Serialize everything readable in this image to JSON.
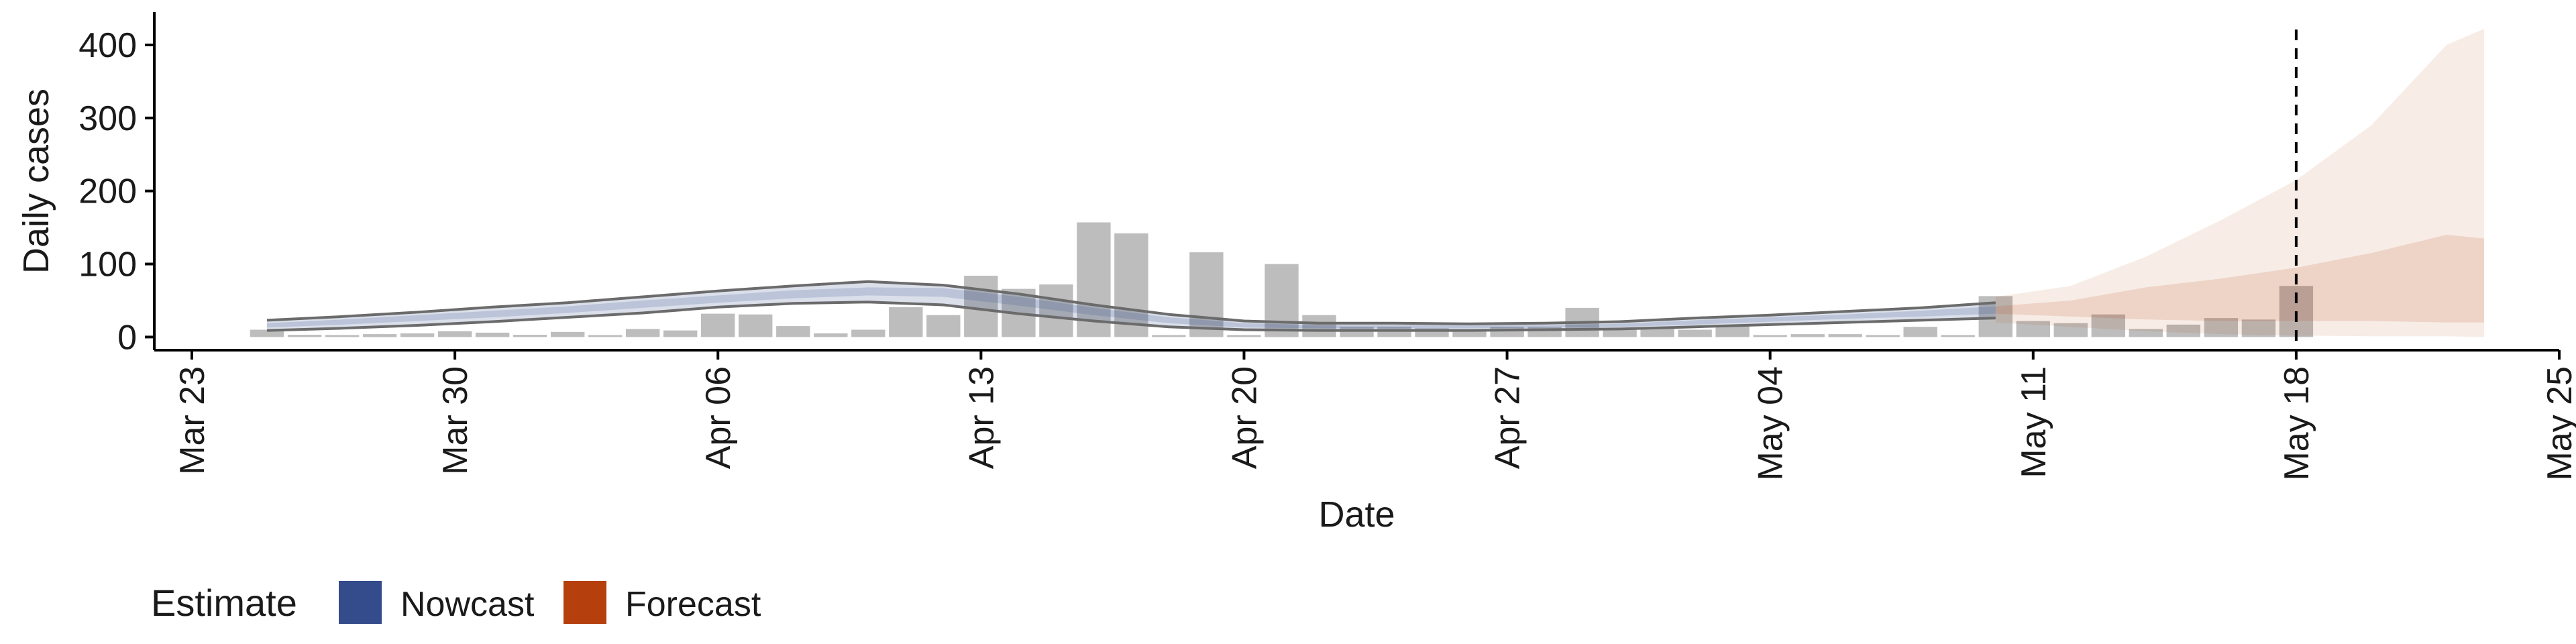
{
  "chart_data": {
    "type": "bar",
    "title": "",
    "xlabel": "Date",
    "ylabel": "Daily cases",
    "x_ticks": [
      "Mar 23",
      "Mar 30",
      "Apr 06",
      "Apr 13",
      "Apr 20",
      "Apr 27",
      "May 04",
      "May 11",
      "May 18",
      "May 25"
    ],
    "y_ticks": [
      "0",
      "100",
      "200",
      "300",
      "400"
    ],
    "xlim": [
      "2020-03-22",
      "2020-05-25"
    ],
    "ylim": [
      -18,
      445
    ],
    "grid": false,
    "vline_date": "2020-05-18",
    "dates": [
      "2020-03-25",
      "2020-03-26",
      "2020-03-27",
      "2020-03-28",
      "2020-03-29",
      "2020-03-30",
      "2020-03-31",
      "2020-04-01",
      "2020-04-02",
      "2020-04-03",
      "2020-04-04",
      "2020-04-05",
      "2020-04-06",
      "2020-04-07",
      "2020-04-08",
      "2020-04-09",
      "2020-04-10",
      "2020-04-11",
      "2020-04-12",
      "2020-04-13",
      "2020-04-14",
      "2020-04-15",
      "2020-04-16",
      "2020-04-17",
      "2020-04-18",
      "2020-04-19",
      "2020-04-20",
      "2020-04-21",
      "2020-04-22",
      "2020-04-23",
      "2020-04-24",
      "2020-04-25",
      "2020-04-26",
      "2020-04-27",
      "2020-04-28",
      "2020-04-29",
      "2020-04-30",
      "2020-05-01",
      "2020-05-02",
      "2020-05-03",
      "2020-05-04",
      "2020-05-05",
      "2020-05-06",
      "2020-05-07",
      "2020-05-08",
      "2020-05-09",
      "2020-05-10",
      "2020-05-11",
      "2020-05-12",
      "2020-05-13",
      "2020-05-14",
      "2020-05-15",
      "2020-05-16",
      "2020-05-17",
      "2020-05-18"
    ],
    "cases": [
      10,
      3,
      2,
      4,
      5,
      8,
      6,
      3,
      7,
      0,
      11,
      9,
      32,
      31,
      15,
      5,
      10,
      41,
      30,
      84,
      66,
      72,
      157,
      142,
      0,
      116,
      0,
      100,
      30,
      14,
      14,
      12,
      10,
      14,
      14,
      40,
      10,
      12,
      10,
      16,
      0,
      4,
      4,
      0,
      14,
      2,
      56,
      22,
      19,
      31,
      11,
      17,
      26,
      24,
      70
    ],
    "nowcast": {
      "dates": [
        "2020-03-25",
        "2020-03-27",
        "2020-03-29",
        "2020-03-31",
        "2020-04-02",
        "2020-04-04",
        "2020-04-06",
        "2020-04-08",
        "2020-04-10",
        "2020-04-12",
        "2020-04-14",
        "2020-04-16",
        "2020-04-18",
        "2020-04-20",
        "2020-04-22",
        "2020-04-24",
        "2020-04-26",
        "2020-04-28",
        "2020-04-30",
        "2020-05-02",
        "2020-05-04",
        "2020-05-06",
        "2020-05-08",
        "2020-05-10"
      ],
      "median": [
        16,
        20,
        26,
        31,
        37,
        44,
        51,
        57,
        62,
        62,
        49,
        35,
        23,
        16,
        14,
        14,
        13,
        14,
        16,
        20,
        24,
        28,
        32,
        37
      ],
      "lower_90": [
        9,
        12,
        16,
        21,
        27,
        33,
        41,
        46,
        48,
        44,
        32,
        22,
        14,
        10,
        9,
        9,
        9,
        10,
        11,
        14,
        17,
        20,
        23,
        26
      ],
      "upper_90": [
        23,
        28,
        34,
        41,
        47,
        55,
        63,
        70,
        76,
        71,
        59,
        44,
        31,
        22,
        19,
        19,
        18,
        19,
        21,
        26,
        30,
        35,
        40,
        47
      ],
      "lower_50": [
        13,
        17,
        22,
        27,
        33,
        40,
        47,
        53,
        57,
        55,
        43,
        30,
        19,
        13,
        12,
        12,
        12,
        13,
        14,
        17,
        21,
        25,
        28,
        32
      ],
      "upper_50": [
        19,
        24,
        30,
        36,
        42,
        50,
        57,
        64,
        68,
        67,
        55,
        40,
        27,
        19,
        16,
        16,
        16,
        16,
        18,
        23,
        27,
        31,
        36,
        42
      ]
    },
    "forecast": {
      "dates": [
        "2020-05-10",
        "2020-05-12",
        "2020-05-14",
        "2020-05-16",
        "2020-05-18",
        "2020-05-20",
        "2020-05-22",
        "2020-05-23"
      ],
      "lower_90": [
        20,
        14,
        8,
        4,
        2,
        1,
        1,
        0
      ],
      "upper_90": [
        55,
        70,
        110,
        160,
        215,
        290,
        400,
        422
      ],
      "lower_50": [
        32,
        28,
        24,
        22,
        22,
        22,
        20,
        20
      ],
      "upper_50": [
        42,
        50,
        68,
        80,
        95,
        115,
        140,
        135
      ]
    },
    "legend": {
      "title": "Estimate",
      "placement": "bottom-left",
      "items": [
        {
          "label": "Nowcast",
          "color": "#344b8c"
        },
        {
          "label": "Forecast",
          "color": "#b5400e"
        }
      ]
    }
  }
}
